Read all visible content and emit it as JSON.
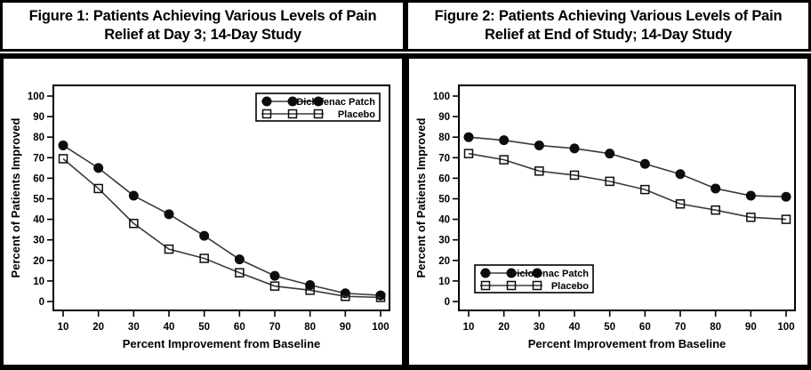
{
  "page": {
    "background": "#ffffff",
    "border_color": "#000000"
  },
  "colors": {
    "line": "#3a3a3a",
    "marker_fill": "#0d0d0d",
    "marker_stroke": "#0d0d0d",
    "text": "#000000",
    "frame": "#000000",
    "legend_background": "#ffffff"
  },
  "chart_data": [
    {
      "type": "line",
      "title": "Figure 1: Patients Achieving Various Levels of Pain Relief at Day 3; 14-Day Study",
      "xlabel": "Percent Improvement from Baseline",
      "ylabel": "Percent of Patients Improved",
      "x": [
        10,
        20,
        30,
        40,
        50,
        60,
        70,
        80,
        90,
        100
      ],
      "xticks": [
        10,
        20,
        30,
        40,
        50,
        60,
        70,
        80,
        90,
        100
      ],
      "yticks": [
        0,
        10,
        20,
        30,
        40,
        50,
        60,
        70,
        80,
        90,
        100
      ],
      "xlim": [
        10,
        100
      ],
      "ylim": [
        0,
        100
      ],
      "grid": false,
      "legend_position": "top-right",
      "series": [
        {
          "name": "Diclofenac Patch",
          "marker": "filled-circle",
          "values": [
            76,
            65,
            51.5,
            42.5,
            32,
            20.5,
            12.5,
            8,
            4,
            3
          ]
        },
        {
          "name": "Placebo",
          "marker": "open-square",
          "values": [
            69.5,
            55,
            38,
            25.5,
            21,
            14,
            7.5,
            5.5,
            2.5,
            2
          ]
        }
      ]
    },
    {
      "type": "line",
      "title": "Figure 2: Patients Achieving Various Levels of Pain Relief at End of Study; 14-Day Study",
      "xlabel": "Percent Improvement from Baseline",
      "ylabel": "Percent of Patients Improved",
      "x": [
        10,
        20,
        30,
        40,
        50,
        60,
        70,
        80,
        90,
        100
      ],
      "xticks": [
        10,
        20,
        30,
        40,
        50,
        60,
        70,
        80,
        90,
        100
      ],
      "yticks": [
        0,
        10,
        20,
        30,
        40,
        50,
        60,
        70,
        80,
        90,
        100
      ],
      "xlim": [
        10,
        100
      ],
      "ylim": [
        0,
        100
      ],
      "grid": false,
      "legend_position": "bottom-left",
      "series": [
        {
          "name": "Diclofenac Patch",
          "marker": "filled-circle",
          "values": [
            80,
            78.5,
            76,
            74.5,
            72,
            67,
            62,
            55,
            51.5,
            51
          ]
        },
        {
          "name": "Placebo",
          "marker": "open-square",
          "values": [
            72,
            69,
            63.5,
            61.5,
            58.5,
            54.5,
            47.5,
            44.5,
            41,
            40
          ]
        }
      ]
    }
  ]
}
